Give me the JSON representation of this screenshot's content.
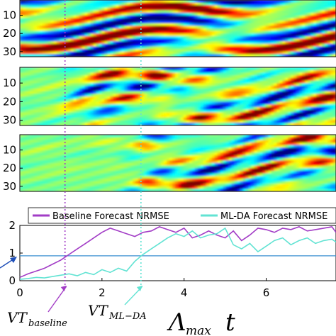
{
  "chart_data": [
    {
      "type": "heatmap",
      "panel": "top",
      "yticks": [
        "10",
        "20",
        "30"
      ],
      "colormap": "jet"
    },
    {
      "type": "heatmap",
      "panel": "middle",
      "yticks": [
        "10",
        "20",
        "30"
      ],
      "colormap": "jet"
    },
    {
      "type": "heatmap",
      "panel": "bottom",
      "yticks": [
        "10",
        "20",
        "30"
      ],
      "colormap": "jet"
    },
    {
      "type": "line",
      "xlim": [
        0,
        7.7
      ],
      "ylim": [
        0,
        2
      ],
      "xticks": [
        "0",
        "2",
        "4",
        "6"
      ],
      "yticks": [
        "0",
        "1",
        "2"
      ],
      "legend_position": "top",
      "threshold": 0.9,
      "xlabel_main": "Λ",
      "xlabel_sub": "max",
      "xlabel_var": "t",
      "series": [
        {
          "name": "Baseline Forecast NRMSE",
          "color": "#a23cc6",
          "x": [
            0,
            0.2,
            0.4,
            0.6,
            0.8,
            1.0,
            1.2,
            1.4,
            1.6,
            1.8,
            2.0,
            2.2,
            2.4,
            2.6,
            2.8,
            3.0,
            3.2,
            3.4,
            3.6,
            3.8,
            4.0,
            4.2,
            4.4,
            4.6,
            4.8,
            5.0,
            5.2,
            5.4,
            5.6,
            5.8,
            6.0,
            6.2,
            6.4,
            6.6,
            6.8,
            7.0,
            7.2,
            7.4,
            7.6,
            7.7
          ],
          "values": [
            0.12,
            0.25,
            0.35,
            0.45,
            0.6,
            0.75,
            0.95,
            1.15,
            1.35,
            1.55,
            1.75,
            1.9,
            1.8,
            1.7,
            1.6,
            1.75,
            1.8,
            1.95,
            1.85,
            1.75,
            1.9,
            1.55,
            1.65,
            1.8,
            1.65,
            1.55,
            1.8,
            1.45,
            1.65,
            1.9,
            1.85,
            1.75,
            1.9,
            1.85,
            1.95,
            1.8,
            1.85,
            1.9,
            1.95,
            1.75
          ]
        },
        {
          "name": "ML-DA Forecast NRMSE",
          "color": "#62e3d3",
          "x": [
            0,
            0.2,
            0.4,
            0.6,
            0.8,
            1.0,
            1.2,
            1.4,
            1.6,
            1.8,
            2.0,
            2.2,
            2.4,
            2.6,
            2.8,
            3.0,
            3.2,
            3.4,
            3.6,
            3.8,
            4.0,
            4.2,
            4.4,
            4.6,
            4.8,
            5.0,
            5.2,
            5.4,
            5.6,
            5.8,
            6.0,
            6.2,
            6.4,
            6.6,
            6.8,
            7.0,
            7.2,
            7.4,
            7.6,
            7.7
          ],
          "values": [
            0.05,
            0.08,
            0.12,
            0.1,
            0.15,
            0.2,
            0.25,
            0.18,
            0.3,
            0.22,
            0.4,
            0.3,
            0.45,
            0.35,
            0.7,
            0.95,
            1.15,
            1.35,
            1.55,
            1.7,
            1.6,
            1.8,
            1.55,
            1.65,
            1.7,
            1.9,
            1.3,
            1.15,
            1.35,
            1.05,
            1.25,
            1.45,
            1.55,
            1.3,
            1.45,
            1.55,
            1.35,
            1.45,
            1.5,
            1.4
          ]
        }
      ]
    }
  ],
  "annotations": {
    "vt_baseline": {
      "main": "VT",
      "sub": "baseline",
      "x": 1.1,
      "color": "#a23cc6"
    },
    "vt_mlda": {
      "main": "VT",
      "sub": "ML−DA",
      "x": 2.95,
      "color": "#62e3d3"
    }
  }
}
